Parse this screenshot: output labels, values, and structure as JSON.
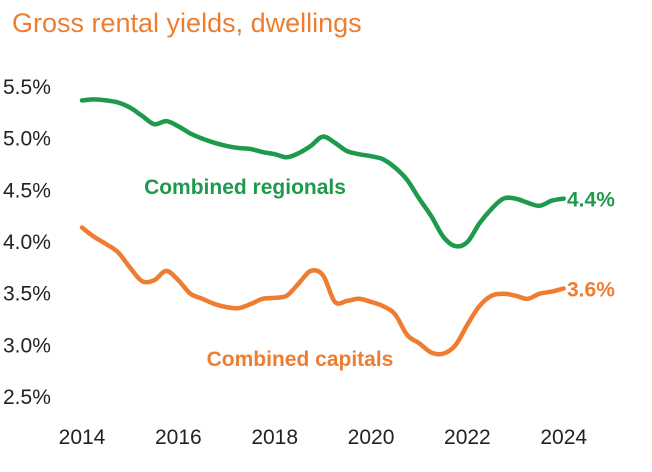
{
  "colors": {
    "regional": "#1E9A4C",
    "capitals": "#EE7D31",
    "title": "#EE7D31",
    "text": "#222222"
  },
  "chart_data": {
    "type": "line",
    "title": "Gross rental yields, dwellings",
    "xlabel": "",
    "ylabel": "",
    "xlim": [
      2014,
      2024.4
    ],
    "ylim": [
      2.5,
      5.5
    ],
    "x_ticks": [
      "2014",
      "2016",
      "2018",
      "2020",
      "2022",
      "2024"
    ],
    "y_ticks": [
      "2.5%",
      "3.0%",
      "3.5%",
      "4.0%",
      "4.5%",
      "5.0%",
      "5.5%"
    ],
    "grid": false,
    "legend": "none (series labelled directly on chart)",
    "series": [
      {
        "name": "Combined regionals",
        "color": "#1E9A4C",
        "end_label": "4.4%",
        "x": [
          2014.0,
          2014.25,
          2014.5,
          2014.75,
          2015.0,
          2015.25,
          2015.5,
          2015.75,
          2016.0,
          2016.25,
          2016.5,
          2016.75,
          2017.0,
          2017.25,
          2017.5,
          2017.75,
          2018.0,
          2018.25,
          2018.5,
          2018.75,
          2019.0,
          2019.25,
          2019.5,
          2019.75,
          2020.0,
          2020.25,
          2020.5,
          2020.75,
          2021.0,
          2021.25,
          2021.5,
          2021.75,
          2022.0,
          2022.25,
          2022.5,
          2022.75,
          2023.0,
          2023.25,
          2023.5,
          2023.75,
          2024.0
        ],
        "values": [
          5.37,
          5.38,
          5.37,
          5.35,
          5.3,
          5.22,
          5.14,
          5.17,
          5.12,
          5.05,
          5.0,
          4.96,
          4.93,
          4.91,
          4.9,
          4.87,
          4.85,
          4.82,
          4.86,
          4.93,
          5.02,
          4.96,
          4.88,
          4.85,
          4.83,
          4.8,
          4.72,
          4.6,
          4.42,
          4.25,
          4.05,
          3.96,
          4.0,
          4.18,
          4.32,
          4.42,
          4.42,
          4.38,
          4.35,
          4.4,
          4.42
        ]
      },
      {
        "name": "Combined capitals",
        "color": "#EE7D31",
        "end_label": "3.6%",
        "x": [
          2014.0,
          2014.25,
          2014.5,
          2014.75,
          2015.0,
          2015.25,
          2015.5,
          2015.75,
          2016.0,
          2016.25,
          2016.5,
          2016.75,
          2017.0,
          2017.25,
          2017.5,
          2017.75,
          2018.0,
          2018.25,
          2018.5,
          2018.75,
          2019.0,
          2019.25,
          2019.5,
          2019.75,
          2020.0,
          2020.25,
          2020.5,
          2020.75,
          2021.0,
          2021.25,
          2021.5,
          2021.75,
          2022.0,
          2022.25,
          2022.5,
          2022.75,
          2023.0,
          2023.25,
          2023.5,
          2023.75,
          2024.0
        ],
        "values": [
          4.14,
          4.05,
          3.98,
          3.9,
          3.75,
          3.62,
          3.63,
          3.72,
          3.63,
          3.5,
          3.45,
          3.4,
          3.37,
          3.36,
          3.4,
          3.45,
          3.46,
          3.48,
          3.6,
          3.72,
          3.68,
          3.42,
          3.43,
          3.45,
          3.42,
          3.38,
          3.3,
          3.1,
          3.02,
          2.93,
          2.92,
          3.0,
          3.2,
          3.38,
          3.48,
          3.5,
          3.48,
          3.45,
          3.5,
          3.52,
          3.55
        ]
      }
    ]
  }
}
